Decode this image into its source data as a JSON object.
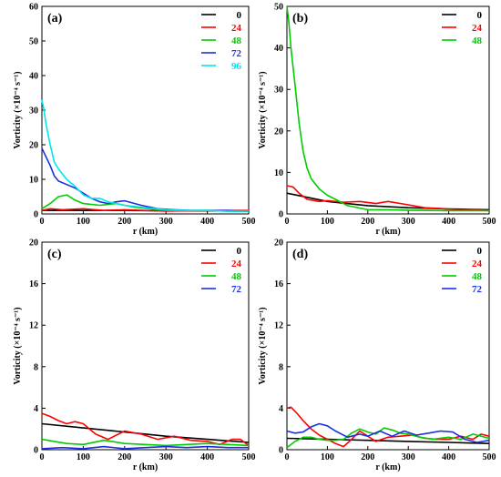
{
  "chart_data": [
    {
      "panel": "(a)",
      "type": "line",
      "xlabel": "r (km)",
      "ylabel": "Vorticity (×10⁻⁴ s⁻¹)",
      "xlim": [
        0,
        500
      ],
      "ylim": [
        0,
        60
      ],
      "xticks": [
        0,
        100,
        200,
        300,
        400,
        500
      ],
      "yticks": [
        0,
        10,
        20,
        30,
        40,
        50,
        60
      ],
      "legend_position": "top-right",
      "series": [
        {
          "name": "0",
          "color": "#000000",
          "x": [
            0,
            100,
            200,
            300,
            400,
            500
          ],
          "y": [
            1.0,
            1.0,
            1.0,
            0.9,
            0.9,
            0.8
          ]
        },
        {
          "name": "24",
          "color": "#ff0000",
          "x": [
            0,
            20,
            50,
            100,
            150,
            200,
            300,
            400,
            500
          ],
          "y": [
            1.0,
            1.5,
            1.2,
            1.5,
            1.0,
            1.2,
            0.8,
            1.0,
            1.0
          ]
        },
        {
          "name": "48",
          "color": "#00cc00",
          "x": [
            0,
            20,
            40,
            60,
            80,
            100,
            140,
            180,
            220,
            260,
            300,
            350,
            400,
            450,
            500
          ],
          "y": [
            1.5,
            3.0,
            5.0,
            5.5,
            4.0,
            3.0,
            2.5,
            3.0,
            2.0,
            1.5,
            1.0,
            1.0,
            1.0,
            0.8,
            0.8
          ]
        },
        {
          "name": "72",
          "color": "#1a2fe0",
          "x": [
            0,
            10,
            20,
            30,
            40,
            60,
            80,
            100,
            120,
            140,
            160,
            180,
            200,
            240,
            280,
            320,
            360,
            400,
            450,
            500
          ],
          "y": [
            19,
            16.5,
            14,
            11,
            9.5,
            8.5,
            7.5,
            6.0,
            4.5,
            3.5,
            3.0,
            3.5,
            3.8,
            2.5,
            1.5,
            1.2,
            1.0,
            1.0,
            1.0,
            0.8
          ]
        },
        {
          "name": "96",
          "color": "#00e5ee",
          "x": [
            0,
            5,
            10,
            20,
            30,
            40,
            60,
            80,
            100,
            120,
            140,
            160,
            200,
            250,
            300,
            350,
            400,
            450,
            500
          ],
          "y": [
            33,
            30,
            26,
            20,
            15,
            13,
            10,
            8,
            5.5,
            4.5,
            4.5,
            3.5,
            2.5,
            1.8,
            1.2,
            1.0,
            1.0,
            0.8,
            0.8
          ]
        }
      ]
    },
    {
      "panel": "(b)",
      "type": "line",
      "xlabel": "r (km)",
      "ylabel": "Vorticity (×10⁻⁴ s⁻¹)",
      "xlim": [
        0,
        500
      ],
      "ylim": [
        0,
        50
      ],
      "xticks": [
        0,
        100,
        200,
        300,
        400,
        500
      ],
      "yticks": [
        0,
        10,
        20,
        30,
        40,
        50
      ],
      "legend_position": "top-right",
      "series": [
        {
          "name": "0",
          "color": "#000000",
          "x": [
            0,
            100,
            200,
            300,
            400,
            500
          ],
          "y": [
            5.0,
            3.0,
            2.0,
            1.5,
            1.2,
            1.0
          ]
        },
        {
          "name": "24",
          "color": "#ff0000",
          "x": [
            0,
            15,
            30,
            50,
            80,
            100,
            140,
            180,
            220,
            250,
            300,
            340,
            380,
            420,
            460,
            500
          ],
          "y": [
            6.8,
            6.5,
            5.0,
            3.5,
            3.0,
            3.2,
            2.8,
            3.0,
            2.5,
            3.0,
            2.2,
            1.5,
            1.3,
            1.0,
            1.0,
            0.8
          ]
        },
        {
          "name": "48",
          "color": "#00cc00",
          "x": [
            0,
            5,
            10,
            20,
            30,
            40,
            50,
            60,
            80,
            100,
            120,
            150,
            200,
            250,
            300,
            400,
            500
          ],
          "y": [
            50,
            46,
            40,
            31,
            22,
            15,
            11,
            8.5,
            6,
            4.5,
            3.5,
            2.0,
            1.0,
            1.0,
            0.9,
            0.8,
            0.8
          ]
        }
      ]
    },
    {
      "panel": "(c)",
      "type": "line",
      "xlabel": "r (km)",
      "ylabel": "Vorticity (×10⁻⁴ s⁻¹)",
      "xlim": [
        0,
        500
      ],
      "ylim": [
        0,
        20
      ],
      "xticks": [
        0,
        100,
        200,
        300,
        400,
        500
      ],
      "yticks": [
        0,
        4,
        8,
        12,
        16,
        20
      ],
      "legend_position": "top-right",
      "series": [
        {
          "name": "0",
          "color": "#000000",
          "x": [
            0,
            100,
            200,
            300,
            400,
            500
          ],
          "y": [
            2.5,
            2.1,
            1.7,
            1.3,
            1.0,
            0.7
          ]
        },
        {
          "name": "24",
          "color": "#ff0000",
          "x": [
            0,
            20,
            40,
            60,
            80,
            100,
            130,
            160,
            200,
            240,
            280,
            320,
            360,
            400,
            430,
            460,
            480,
            500
          ],
          "y": [
            3.5,
            3.2,
            2.8,
            2.5,
            2.7,
            2.5,
            1.5,
            1.0,
            1.8,
            1.5,
            1.0,
            1.3,
            0.9,
            0.8,
            0.5,
            1.0,
            1.0,
            0.4
          ]
        },
        {
          "name": "48",
          "color": "#00cc00",
          "x": [
            0,
            30,
            60,
            100,
            150,
            200,
            250,
            300,
            350,
            400,
            450,
            500
          ],
          "y": [
            1.0,
            0.8,
            0.6,
            0.5,
            0.9,
            0.6,
            0.5,
            0.4,
            0.5,
            0.6,
            0.5,
            0.4
          ]
        },
        {
          "name": "72",
          "color": "#1a2fe0",
          "x": [
            0,
            50,
            100,
            150,
            200,
            250,
            300,
            350,
            400,
            450,
            500
          ],
          "y": [
            0.1,
            0.2,
            0.1,
            0.3,
            0.1,
            0.2,
            0.3,
            0.2,
            0.3,
            0.2,
            0.2
          ]
        }
      ]
    },
    {
      "panel": "(d)",
      "type": "line",
      "xlabel": "r (km)",
      "ylabel": "Vorticity (×10⁻⁴ s⁻¹)",
      "xlim": [
        0,
        500
      ],
      "ylim": [
        0,
        20
      ],
      "xticks": [
        0,
        100,
        200,
        300,
        400,
        500
      ],
      "yticks": [
        0,
        4,
        8,
        12,
        16,
        20
      ],
      "legend_position": "top-right",
      "series": [
        {
          "name": "0",
          "color": "#000000",
          "x": [
            0,
            100,
            200,
            300,
            400,
            500
          ],
          "y": [
            1.1,
            1.0,
            0.9,
            0.8,
            0.7,
            0.6
          ]
        },
        {
          "name": "24",
          "color": "#ff0000",
          "x": [
            0,
            10,
            25,
            40,
            60,
            80,
            100,
            120,
            140,
            160,
            180,
            200,
            220,
            250,
            280,
            310,
            340,
            370,
            400,
            430,
            460,
            480,
            500
          ],
          "y": [
            4.0,
            4.1,
            3.5,
            2.8,
            2.0,
            1.4,
            1.0,
            0.6,
            0.3,
            1.0,
            1.8,
            1.3,
            0.8,
            1.2,
            1.3,
            1.4,
            1.1,
            1.0,
            1.0,
            1.3,
            1.0,
            1.5,
            1.3
          ]
        },
        {
          "name": "48",
          "color": "#00cc00",
          "x": [
            0,
            20,
            40,
            60,
            80,
            100,
            120,
            140,
            160,
            180,
            200,
            220,
            240,
            260,
            280,
            300,
            330,
            360,
            400,
            430,
            460,
            500
          ],
          "y": [
            0.2,
            0.8,
            1.2,
            1.2,
            1.0,
            0.9,
            0.9,
            1.0,
            1.6,
            2.0,
            1.7,
            1.5,
            2.1,
            1.9,
            1.6,
            1.5,
            1.2,
            1.0,
            1.2,
            1.0,
            1.5,
            1.1
          ]
        },
        {
          "name": "72",
          "color": "#1a2fe0",
          "x": [
            0,
            20,
            40,
            60,
            80,
            100,
            120,
            150,
            180,
            200,
            230,
            260,
            290,
            320,
            350,
            380,
            410,
            440,
            470,
            500
          ],
          "y": [
            1.8,
            1.6,
            1.7,
            2.2,
            2.5,
            2.3,
            1.8,
            1.2,
            1.5,
            1.3,
            1.8,
            1.3,
            1.8,
            1.4,
            1.6,
            1.8,
            1.7,
            1.0,
            0.7,
            0.9
          ]
        }
      ]
    }
  ]
}
